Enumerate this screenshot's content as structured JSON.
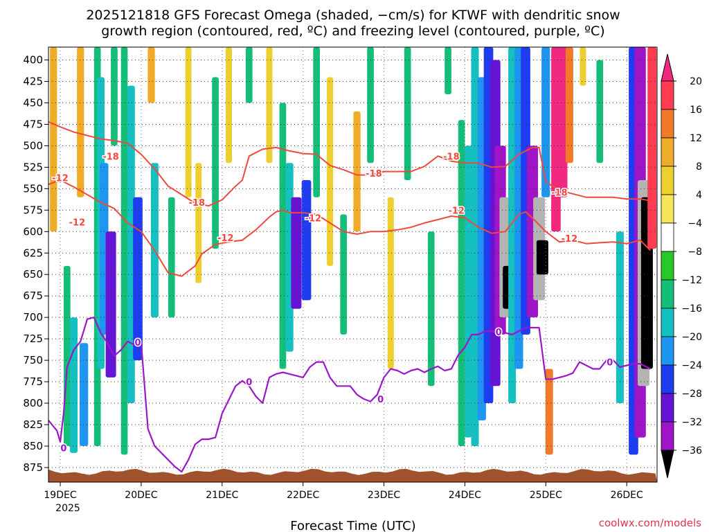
{
  "chart_data": {
    "type": "heatmap",
    "title_line1": "2025121818 GFS Forecast Omega (shaded, −cm/s) for KTWF with dendritic snow",
    "title_line2": "growth region (contoured, red, ºC) and freezing level (contoured, purple, ºC)",
    "xlabel": "Forecast Time (UTC)",
    "x_ticks": [
      "19DEC",
      "20DEC",
      "21DEC",
      "22DEC",
      "23DEC",
      "24DEC",
      "25DEC",
      "26DEC"
    ],
    "x_tick_hours": [
      0,
      24,
      48,
      72,
      96,
      120,
      144,
      168
    ],
    "x_year_label": "2025",
    "x_range_hours": [
      -3.5,
      177
    ],
    "y_ticks": [
      "400",
      "425",
      "450",
      "475",
      "500",
      "525",
      "550",
      "575",
      "600",
      "625",
      "650",
      "675",
      "700",
      "725",
      "750",
      "775",
      "800",
      "825",
      "850",
      "875"
    ],
    "y_tick_values": [
      400,
      425,
      450,
      475,
      500,
      525,
      550,
      575,
      600,
      625,
      650,
      675,
      700,
      725,
      750,
      775,
      800,
      825,
      850,
      875
    ],
    "ylim_hpa": [
      385,
      892
    ],
    "colorbar": {
      "labels": [
        "20",
        "16",
        "12",
        "8",
        "4",
        "−4",
        "−8",
        "−12",
        "−16",
        "−20",
        "−24",
        "−28",
        "−32",
        "−36"
      ],
      "values": [
        20,
        16,
        12,
        8,
        4,
        -4,
        -8,
        -12,
        -16,
        -20,
        -24,
        -28,
        -32,
        -36
      ],
      "colors": [
        "#ff3c52",
        "#f07a28",
        "#eeac28",
        "#edd030",
        "#f5e65a",
        "#ffffff",
        "#28c828",
        "#14be78",
        "#14c0c0",
        "#1e96f0",
        "#1e3cf0",
        "#6414d2",
        "#a014c8",
        "#b4b4b4",
        "#000000"
      ],
      "top_arrow_color": "#f0287f",
      "bottom_arrow_color": "#000000"
    },
    "dgz_color": "#f0483c",
    "freezing_color": "#9b16c8",
    "ground_color": "#a0522d",
    "contour_dgz_minus12": {
      "label": "-12",
      "hours": [
        -3.5,
        0,
        4,
        8,
        12,
        16,
        20,
        24,
        28,
        32,
        36,
        40,
        42,
        46,
        50,
        54,
        58,
        62,
        64,
        66,
        68,
        72,
        76,
        80,
        84,
        88,
        92,
        96,
        100,
        104,
        108,
        112,
        116,
        120,
        124,
        128,
        132,
        136,
        138,
        140,
        144,
        148,
        152,
        156,
        160,
        164,
        168,
        172,
        175
      ],
      "hpa": [
        545,
        540,
        548,
        557,
        566,
        573,
        590,
        600,
        622,
        648,
        652,
        640,
        626,
        615,
        612,
        610,
        598,
        583,
        577,
        575,
        578,
        578,
        580,
        590,
        600,
        603,
        600,
        600,
        598,
        595,
        590,
        586,
        582,
        584,
        595,
        602,
        600,
        580,
        577,
        584,
        600,
        612,
        610,
        614,
        613,
        612,
        614,
        610,
        622
      ]
    },
    "contour_dgz_minus18": {
      "label": "-18",
      "hours": [
        -3.5,
        0,
        4,
        8,
        12,
        16,
        20,
        24,
        28,
        32,
        36,
        40,
        44,
        48,
        52,
        54,
        56,
        60,
        64,
        68,
        72,
        76,
        80,
        84,
        88,
        92,
        96,
        100,
        104,
        108,
        112,
        116,
        120,
        124,
        128,
        132,
        136,
        140,
        142,
        144,
        148,
        152,
        156,
        160,
        164,
        168,
        172,
        175
      ],
      "hpa": [
        472,
        478,
        484,
        488,
        492,
        494,
        497,
        510,
        527,
        547,
        557,
        567,
        570,
        563,
        547,
        540,
        512,
        504,
        502,
        506,
        509,
        510,
        523,
        528,
        534,
        534,
        530,
        530,
        530,
        524,
        512,
        518,
        520,
        520,
        525,
        524,
        510,
        502,
        502,
        542,
        552,
        556,
        560,
        560,
        560,
        562,
        562,
        564
      ]
    },
    "contour_freezing_0": {
      "label": "0",
      "hours": [
        -3.5,
        -1,
        0,
        1,
        2,
        4,
        6,
        8,
        10,
        12,
        14,
        16,
        18,
        20,
        22,
        24,
        26,
        28,
        30,
        32,
        34,
        36,
        38,
        40,
        42,
        44,
        46,
        48,
        50,
        52,
        54,
        56,
        58,
        60,
        62,
        64,
        66,
        68,
        70,
        72,
        74,
        76,
        78,
        80,
        82,
        84,
        86,
        88,
        90,
        92,
        94,
        96,
        98,
        100,
        102,
        104,
        106,
        108,
        110,
        112,
        114,
        116,
        118,
        120,
        122,
        124,
        126,
        128,
        130,
        132,
        134,
        136,
        138,
        140,
        142,
        144,
        146,
        148,
        150,
        152,
        154,
        156,
        158,
        160,
        162,
        164,
        166,
        168,
        170,
        172,
        175
      ],
      "hpa": [
        820,
        832,
        845,
        812,
        758,
        738,
        728,
        702,
        700,
        718,
        730,
        745,
        738,
        728,
        732,
        730,
        830,
        850,
        858,
        866,
        874,
        880,
        866,
        848,
        842,
        842,
        840,
        812,
        796,
        780,
        774,
        780,
        792,
        800,
        770,
        766,
        764,
        766,
        768,
        770,
        758,
        752,
        752,
        770,
        780,
        780,
        780,
        790,
        795,
        798,
        790,
        770,
        760,
        762,
        766,
        762,
        760,
        764,
        760,
        757,
        762,
        760,
        744,
        735,
        720,
        720,
        716,
        716,
        718,
        718,
        720,
        716,
        712,
        712,
        712,
        772,
        772,
        770,
        768,
        765,
        752,
        756,
        760,
        760,
        750,
        750,
        758,
        756,
        754,
        754,
        760
      ]
    },
    "contour_label_points": [
      {
        "text": "-18",
        "hour": 15,
        "hpa": 512,
        "series": "dgz"
      },
      {
        "text": "-12",
        "hour": 0,
        "hpa": 537,
        "series": "dgz"
      },
      {
        "text": "-18",
        "hour": 40.5,
        "hpa": 566,
        "series": "dgz"
      },
      {
        "text": "-12",
        "hour": 5,
        "hpa": 589,
        "series": "dgz"
      },
      {
        "text": "-12",
        "hour": 49,
        "hpa": 607,
        "series": "dgz"
      },
      {
        "text": "-12",
        "hour": 75,
        "hpa": 584,
        "series": "dgz"
      },
      {
        "text": "-18",
        "hour": 93,
        "hpa": 532,
        "series": "dgz"
      },
      {
        "text": "-12",
        "hour": 117.5,
        "hpa": 575,
        "series": "dgz"
      },
      {
        "text": "-18",
        "hour": 116,
        "hpa": 512,
        "series": "dgz"
      },
      {
        "text": "-18",
        "hour": 148,
        "hpa": 554,
        "series": "dgz"
      },
      {
        "text": "-12",
        "hour": 151,
        "hpa": 608,
        "series": "dgz"
      },
      {
        "text": "0",
        "hour": 1,
        "hpa": 852,
        "series": "fz"
      },
      {
        "text": "0",
        "hour": 23,
        "hpa": 729,
        "series": "fz"
      },
      {
        "text": "0",
        "hour": 56,
        "hpa": 775,
        "series": "fz"
      },
      {
        "text": "0",
        "hour": 95,
        "hpa": 795,
        "series": "fz"
      },
      {
        "text": "0",
        "hour": 130,
        "hpa": 717,
        "series": "fz"
      },
      {
        "text": "0",
        "hour": 163,
        "hpa": 752,
        "series": "fz"
      }
    ],
    "omega_features": [
      {
        "hour": -2,
        "top": 385,
        "bottom": 600,
        "v": 10
      },
      {
        "hour": 2,
        "top": 640,
        "bottom": 850,
        "v": -8
      },
      {
        "hour": 4,
        "top": 700,
        "bottom": 858,
        "v": -12
      },
      {
        "hour": 6,
        "top": 385,
        "bottom": 560,
        "v": 10
      },
      {
        "hour": 7,
        "top": 730,
        "bottom": 850,
        "v": -16
      },
      {
        "hour": 11,
        "top": 385,
        "bottom": 850,
        "v": -8
      },
      {
        "hour": 12,
        "top": 420,
        "bottom": 760,
        "v": -12
      },
      {
        "hour": 13,
        "top": 520,
        "bottom": 720,
        "v": -16
      },
      {
        "hour": 15,
        "top": 600,
        "bottom": 770,
        "v": -24
      },
      {
        "hour": 16,
        "top": 385,
        "bottom": 500,
        "v": -8
      },
      {
        "hour": 19,
        "top": 385,
        "bottom": 860,
        "v": -8
      },
      {
        "hour": 21,
        "top": 430,
        "bottom": 800,
        "v": -12
      },
      {
        "hour": 23,
        "top": 560,
        "bottom": 750,
        "v": -20
      },
      {
        "hour": 27,
        "top": 385,
        "bottom": 450,
        "v": 10
      },
      {
        "hour": 28,
        "top": 520,
        "bottom": 700,
        "v": -12
      },
      {
        "hour": 33,
        "top": 560,
        "bottom": 700,
        "v": -8
      },
      {
        "hour": 38,
        "top": 385,
        "bottom": 560,
        "v": 6
      },
      {
        "hour": 41,
        "top": 520,
        "bottom": 660,
        "v": 6
      },
      {
        "hour": 46,
        "top": 420,
        "bottom": 620,
        "v": -8
      },
      {
        "hour": 50,
        "top": 385,
        "bottom": 520,
        "v": 6
      },
      {
        "hour": 56,
        "top": 385,
        "bottom": 450,
        "v": -8
      },
      {
        "hour": 62,
        "top": 385,
        "bottom": 520,
        "v": 6
      },
      {
        "hour": 66,
        "top": 450,
        "bottom": 760,
        "v": -8
      },
      {
        "hour": 68,
        "top": 520,
        "bottom": 740,
        "v": -12
      },
      {
        "hour": 70,
        "top": 560,
        "bottom": 690,
        "v": -24
      },
      {
        "hour": 73,
        "top": 540,
        "bottom": 680,
        "v": -20
      },
      {
        "hour": 76,
        "top": 385,
        "bottom": 560,
        "v": -8
      },
      {
        "hour": 80,
        "top": 420,
        "bottom": 640,
        "v": 6
      },
      {
        "hour": 84,
        "top": 580,
        "bottom": 720,
        "v": -8
      },
      {
        "hour": 88,
        "top": 460,
        "bottom": 600,
        "v": 10
      },
      {
        "hour": 92,
        "top": 385,
        "bottom": 520,
        "v": -8
      },
      {
        "hour": 98,
        "top": 560,
        "bottom": 760,
        "v": 6
      },
      {
        "hour": 103,
        "top": 385,
        "bottom": 540,
        "v": -8
      },
      {
        "hour": 110,
        "top": 600,
        "bottom": 780,
        "v": -8
      },
      {
        "hour": 115,
        "top": 385,
        "bottom": 440,
        "v": -8
      },
      {
        "hour": 119,
        "top": 470,
        "bottom": 850,
        "v": -8
      },
      {
        "hour": 121,
        "top": 500,
        "bottom": 840,
        "v": -12
      },
      {
        "hour": 123,
        "top": 385,
        "bottom": 850,
        "v": -12
      },
      {
        "hour": 125,
        "top": 420,
        "bottom": 820,
        "v": -16
      },
      {
        "hour": 127,
        "top": 385,
        "bottom": 800,
        "v": -20
      },
      {
        "hour": 129,
        "top": 400,
        "bottom": 780,
        "v": -24
      },
      {
        "hour": 130.5,
        "top": 500,
        "bottom": 720,
        "v": -28
      },
      {
        "hour": 132,
        "top": 560,
        "bottom": 700,
        "v": -34
      },
      {
        "hour": 133,
        "top": 640,
        "bottom": 690,
        "v": -40
      },
      {
        "hour": 134,
        "top": 385,
        "bottom": 800,
        "v": -12
      },
      {
        "hour": 136,
        "top": 385,
        "bottom": 760,
        "v": -16
      },
      {
        "hour": 138,
        "top": 385,
        "bottom": 720,
        "v": -20
      },
      {
        "hour": 140,
        "top": 500,
        "bottom": 700,
        "v": -28
      },
      {
        "hour": 142,
        "top": 560,
        "bottom": 680,
        "v": -34
      },
      {
        "hour": 143,
        "top": 610,
        "bottom": 650,
        "v": -40
      },
      {
        "hour": 144,
        "top": 385,
        "bottom": 560,
        "v": -16
      },
      {
        "hour": 145,
        "top": 760,
        "bottom": 860,
        "v": 12
      },
      {
        "hour": 147,
        "top": 385,
        "bottom": 600,
        "v": 20
      },
      {
        "hour": 149,
        "top": 385,
        "bottom": 560,
        "v": 20
      },
      {
        "hour": 151,
        "top": 385,
        "bottom": 520,
        "v": 12
      },
      {
        "hour": 155,
        "top": 385,
        "bottom": 430,
        "v": 6
      },
      {
        "hour": 160,
        "top": 400,
        "bottom": 520,
        "v": -8
      },
      {
        "hour": 166,
        "top": 600,
        "bottom": 800,
        "v": -12
      },
      {
        "hour": 170,
        "top": 385,
        "bottom": 860,
        "v": -20
      },
      {
        "hour": 172,
        "top": 385,
        "bottom": 840,
        "v": -28
      },
      {
        "hour": 173,
        "top": 540,
        "bottom": 780,
        "v": -34
      },
      {
        "hour": 174,
        "top": 560,
        "bottom": 760,
        "v": -40
      },
      {
        "hour": 175.5,
        "top": 385,
        "bottom": 620,
        "v": 18
      }
    ],
    "credit": "coolwx.com/models"
  }
}
